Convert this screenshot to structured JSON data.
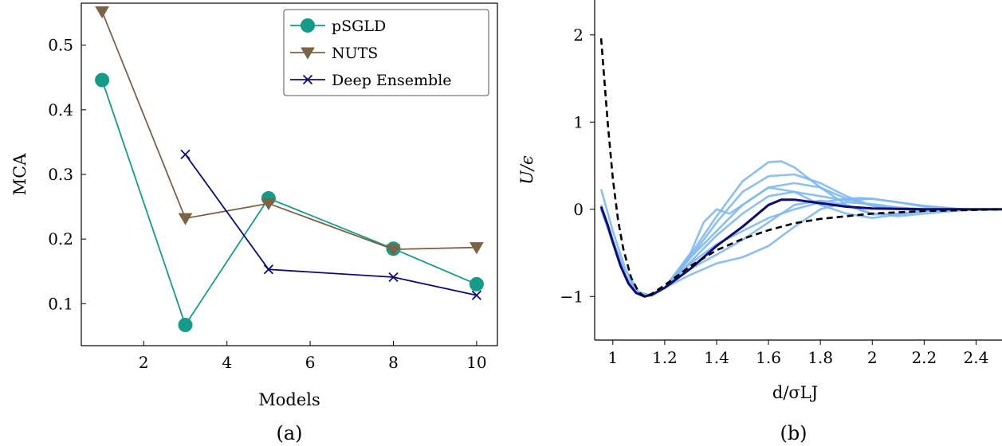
{
  "chart_data": [
    {
      "type": "line",
      "caption": "(a)",
      "xlabel": "Models",
      "ylabel": "MCA",
      "xlim": [
        0.5,
        10.5
      ],
      "ylim": [
        0.035,
        0.565
      ],
      "xticks": [
        2,
        4,
        6,
        8,
        10
      ],
      "yticks": [
        0.1,
        0.2,
        0.3,
        0.4,
        0.5
      ],
      "grid": false,
      "legend_position": "top-right",
      "series": [
        {
          "name": "pSGLD",
          "x": [
            1,
            3,
            5,
            8,
            10
          ],
          "y": [
            0.446,
            0.067,
            0.263,
            0.185,
            0.13
          ],
          "color": "#149C88",
          "marker": "circle"
        },
        {
          "name": "NUTS",
          "x": [
            1,
            3,
            5,
            8,
            10
          ],
          "y": [
            0.552,
            0.232,
            0.255,
            0.184,
            0.187
          ],
          "color": "#7B6346",
          "marker": "triangle-down"
        },
        {
          "name": "Deep Ensemble",
          "x": [
            3,
            5,
            8,
            10
          ],
          "y": [
            0.331,
            0.153,
            0.141,
            0.113
          ],
          "color": "#0B0B7A",
          "marker": "x"
        }
      ]
    },
    {
      "type": "line",
      "caption": "(b)",
      "xlabel": "d/σLJ",
      "ylabel": "U/ϵ",
      "xlim": [
        0.93,
        2.5
      ],
      "ylim": [
        -1.5,
        2.4
      ],
      "xticks": [
        1,
        1.2,
        1.4,
        1.6,
        1.8,
        2,
        2.2,
        2.4
      ],
      "xtick_labels": [
        "1",
        "1.2",
        "1.4",
        "1.6",
        "1.8",
        "2",
        "2.2",
        "2.4"
      ],
      "yticks": [
        -1,
        0,
        1,
        2
      ],
      "ytick_labels": [
        "−1",
        "0",
        "1",
        "2"
      ],
      "grid": false,
      "colors": {
        "samples": "#7FB8F2",
        "mean": "#0B0B7A",
        "reference": "#000000"
      },
      "reference_curve": {
        "x": [
          0.955,
          0.98,
          1.0,
          1.02,
          1.04,
          1.07,
          1.1,
          1.122,
          1.15,
          1.2,
          1.25,
          1.3,
          1.4,
          1.5,
          1.6,
          1.7,
          1.8,
          1.9,
          2.0,
          2.2,
          2.5
        ],
        "y": [
          1.96,
          1.0,
          0.35,
          -0.12,
          -0.45,
          -0.78,
          -0.95,
          -1.0,
          -0.97,
          -0.87,
          -0.76,
          -0.65,
          -0.47,
          -0.34,
          -0.24,
          -0.16,
          -0.11,
          -0.08,
          -0.05,
          -0.02,
          0.0
        ]
      },
      "mean_curve": {
        "x": [
          0.955,
          0.98,
          1.0,
          1.03,
          1.06,
          1.09,
          1.122,
          1.15,
          1.2,
          1.3,
          1.4,
          1.5,
          1.6,
          1.65,
          1.7,
          1.8,
          1.9,
          2.0,
          2.2,
          2.5
        ],
        "y": [
          0.03,
          -0.18,
          -0.38,
          -0.65,
          -0.85,
          -0.96,
          -1.0,
          -0.98,
          -0.9,
          -0.68,
          -0.42,
          -0.2,
          0.05,
          0.11,
          0.11,
          0.07,
          0.03,
          0.01,
          0.0,
          0.0
        ]
      },
      "sample_curves": [
        {
          "x": [
            0.955,
            1.0,
            1.05,
            1.1,
            1.15,
            1.2,
            1.3,
            1.4,
            1.5,
            1.6,
            1.65,
            1.7,
            1.8,
            1.9,
            2.0,
            2.1,
            2.2,
            2.35,
            2.5
          ],
          "y": [
            0.23,
            -0.25,
            -0.7,
            -0.95,
            -0.99,
            -0.9,
            -0.52,
            -0.08,
            0.32,
            0.54,
            0.55,
            0.48,
            0.25,
            0.05,
            -0.06,
            -0.05,
            -0.02,
            0.0,
            0.0
          ]
        },
        {
          "x": [
            0.955,
            1.0,
            1.05,
            1.1,
            1.15,
            1.2,
            1.3,
            1.4,
            1.5,
            1.6,
            1.7,
            1.8,
            1.9,
            2.0,
            2.1,
            2.2,
            2.35,
            2.5
          ],
          "y": [
            0.0,
            -0.38,
            -0.78,
            -0.97,
            -0.99,
            -0.9,
            -0.55,
            -0.15,
            0.2,
            0.38,
            0.4,
            0.3,
            0.15,
            0.04,
            0.0,
            -0.01,
            0.0,
            0.0
          ]
        },
        {
          "x": [
            0.955,
            1.0,
            1.05,
            1.1,
            1.15,
            1.2,
            1.3,
            1.35,
            1.4,
            1.45,
            1.5,
            1.6,
            1.7,
            1.8,
            1.9,
            2.0,
            2.2,
            2.5
          ],
          "y": [
            0.05,
            -0.35,
            -0.76,
            -0.96,
            -0.99,
            -0.9,
            -0.5,
            -0.15,
            0.0,
            -0.05,
            0.05,
            0.25,
            0.3,
            0.25,
            0.12,
            0.04,
            0.0,
            0.0
          ]
        },
        {
          "x": [
            0.955,
            1.0,
            1.05,
            1.1,
            1.15,
            1.2,
            1.3,
            1.4,
            1.5,
            1.6,
            1.7,
            1.8,
            1.9,
            1.95,
            2.0,
            2.1,
            2.2,
            2.35,
            2.5
          ],
          "y": [
            0.02,
            -0.37,
            -0.77,
            -0.96,
            -0.99,
            -0.9,
            -0.62,
            -0.4,
            -0.25,
            -0.1,
            0.0,
            0.08,
            0.12,
            0.13,
            0.12,
            0.08,
            0.04,
            0.0,
            0.0
          ]
        },
        {
          "x": [
            0.955,
            1.0,
            1.05,
            1.1,
            1.15,
            1.2,
            1.3,
            1.4,
            1.5,
            1.6,
            1.7,
            1.8,
            1.9,
            2.0,
            2.1,
            2.2,
            2.35,
            2.5
          ],
          "y": [
            0.0,
            -0.38,
            -0.78,
            -0.97,
            -0.99,
            -0.9,
            -0.75,
            -0.62,
            -0.55,
            -0.42,
            -0.2,
            0.0,
            0.08,
            0.06,
            0.02,
            0.0,
            0.0,
            0.0
          ]
        },
        {
          "x": [
            0.955,
            1.0,
            1.05,
            1.1,
            1.15,
            1.2,
            1.3,
            1.4,
            1.5,
            1.6,
            1.7,
            1.8,
            1.9,
            2.0,
            2.1,
            2.2,
            2.35,
            2.5
          ],
          "y": [
            0.0,
            -0.38,
            -0.78,
            -0.97,
            -0.99,
            -0.9,
            -0.68,
            -0.52,
            -0.35,
            -0.15,
            0.05,
            0.1,
            0.05,
            -0.05,
            -0.08,
            -0.05,
            -0.01,
            0.0
          ]
        },
        {
          "x": [
            0.955,
            1.0,
            1.05,
            1.1,
            1.15,
            1.2,
            1.3,
            1.4,
            1.5,
            1.6,
            1.7,
            1.8,
            1.9,
            2.0,
            2.1,
            2.2,
            2.35,
            2.5
          ],
          "y": [
            0.0,
            -0.38,
            -0.78,
            -0.97,
            -0.99,
            -0.9,
            -0.55,
            -0.25,
            0.05,
            0.25,
            0.2,
            0.05,
            -0.05,
            -0.1,
            -0.06,
            -0.02,
            0.0,
            0.0
          ]
        },
        {
          "x": [
            0.955,
            1.0,
            1.05,
            1.1,
            1.15,
            1.2,
            1.3,
            1.4,
            1.5,
            1.6,
            1.7,
            1.8,
            1.9,
            2.0,
            2.1,
            2.2,
            2.35,
            2.5
          ],
          "y": [
            0.0,
            -0.38,
            -0.78,
            -0.97,
            -0.99,
            -0.9,
            -0.6,
            -0.3,
            -0.05,
            0.15,
            0.2,
            0.15,
            0.1,
            0.12,
            0.08,
            0.03,
            0.0,
            0.0
          ]
        }
      ]
    }
  ]
}
